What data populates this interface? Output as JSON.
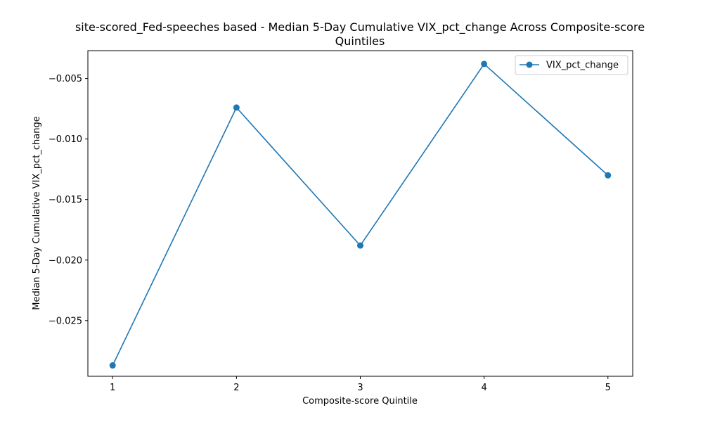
{
  "chart_data": {
    "type": "line",
    "title_line1": "site-scored_Fed-speeches based - Median 5-Day Cumulative VIX_pct_change Across Composite-score",
    "title_line2": "Quintiles",
    "xlabel": "Composite-score Quintile",
    "ylabel": "Median 5-Day Cumulative VIX_pct_change",
    "x": [
      1,
      2,
      3,
      4,
      5
    ],
    "x_tick_labels": [
      "1",
      "2",
      "3",
      "4",
      "5"
    ],
    "xlim": [
      0.8,
      5.2
    ],
    "y_ticks": [
      -0.005,
      -0.01,
      -0.015,
      -0.02,
      -0.025
    ],
    "y_tick_labels": [
      "−0.005",
      "−0.010",
      "−0.015",
      "−0.020",
      "−0.025"
    ],
    "ylim": [
      -0.0296,
      -0.0027
    ],
    "series": [
      {
        "name": "VIX_pct_change",
        "color": "#1f77b4",
        "values": [
          -0.0287,
          -0.0074,
          -0.0188,
          -0.0038,
          -0.013
        ]
      }
    ],
    "legend_position": "top-right",
    "grid": false
  }
}
